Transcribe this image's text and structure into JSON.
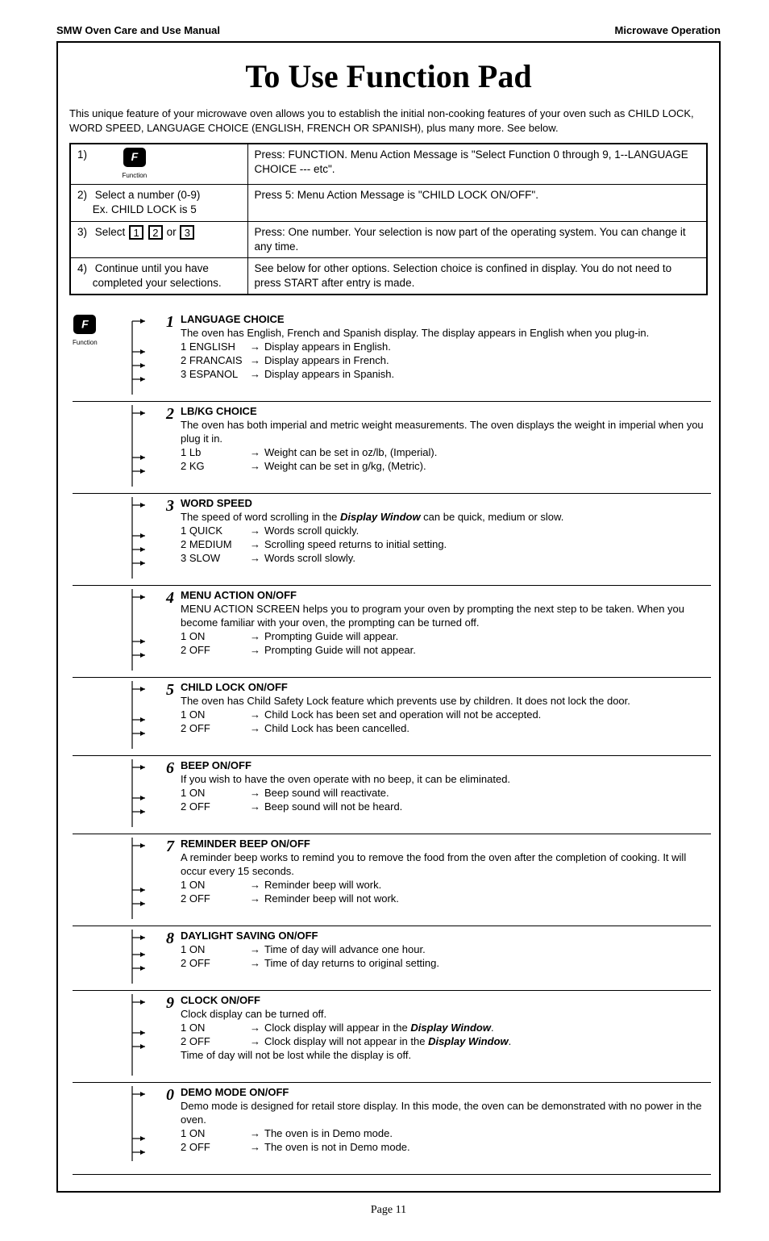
{
  "header": {
    "left": "SMW Oven Care and Use Manual",
    "right": "Microwave Operation"
  },
  "title": "To Use Function Pad",
  "intro": "This unique feature of your microwave oven allows you to establish the initial non-cooking features of your oven such as CHILD LOCK, WORD SPEED, LANGUAGE CHOICE (ENGLISH, FRENCH OR SPANISH), plus many more. See below.",
  "function_button_label": "Function",
  "steps": [
    {
      "num": "1)",
      "left_extra": "",
      "right": "Press: FUNCTION. Menu Action Message is \"Select Function 0 through 9, 1--LANGUAGE CHOICE --- etc\"."
    },
    {
      "num": "2)",
      "left_line1": "Select a number (0-9)",
      "left_line2": "Ex.   CHILD LOCK is 5",
      "right": "Press 5: Menu Action Message is \"CHILD LOCK ON/OFF\"."
    },
    {
      "num": "3)",
      "select_label": "Select",
      "or_label": "or",
      "right": "Press: One number. Your selection is now part of the operating system. You can change it any time."
    },
    {
      "num": "4)",
      "left_line1": "Continue until you have",
      "left_line2": "completed your selections.",
      "right": "See below for other options.  Selection choice is confined in display. You do not need to press START after entry is made."
    }
  ],
  "functions": [
    {
      "n": "1",
      "title": "LANGUAGE CHOICE",
      "desc": "The oven has English, French and Spanish display. The display appears in English when you plug-in.",
      "options": [
        {
          "k": "1 ENGLISH",
          "v": "Display appears in English."
        },
        {
          "k": "2 FRANCAIS",
          "v": "Display appears in French."
        },
        {
          "k": "3 ESPANOL",
          "v": "Display appears in Spanish."
        }
      ],
      "show_icon": true
    },
    {
      "n": "2",
      "title": "Lb/KG CHOICE",
      "desc": "The oven has both imperial and metric weight measurements. The oven displays the weight in imperial when you plug it in.",
      "options": [
        {
          "k": "1 Lb",
          "v": "Weight can be set in oz/lb, (Imperial)."
        },
        {
          "k": "2 KG",
          "v": "Weight can be set in g/kg, (Metric)."
        }
      ]
    },
    {
      "n": "3",
      "title": "WORD SPEED",
      "desc_pre": "The speed of word scrolling in the ",
      "desc_em": "Display Window",
      "desc_post": " can be quick, medium or slow.",
      "options": [
        {
          "k": "1 QUICK",
          "v": "Words scroll quickly."
        },
        {
          "k": "2 MEDIUM",
          "v": "Scrolling speed returns to initial setting."
        },
        {
          "k": "3 SLOW",
          "v": "Words scroll slowly."
        }
      ]
    },
    {
      "n": "4",
      "title": "MENU ACTION ON/OFF",
      "desc": "MENU ACTION SCREEN helps you to program your oven by prompting the next step to be taken. When you become familiar with your oven, the prompting can be turned off.",
      "options": [
        {
          "k": "1 ON",
          "v": "Prompting Guide will appear."
        },
        {
          "k": "2 OFF",
          "v": "Prompting Guide will not appear."
        }
      ]
    },
    {
      "n": "5",
      "title": "CHILD LOCK ON/OFF",
      "desc": "The oven has Child Safety Lock feature which prevents use by children.  It does not lock the door.",
      "options": [
        {
          "k": "1 ON",
          "v": "Child Lock has been set and operation will not be accepted."
        },
        {
          "k": "2 OFF",
          "v": "Child Lock has been cancelled."
        }
      ]
    },
    {
      "n": "6",
      "title": "BEEP ON/OFF",
      "desc": "If you wish to have the oven operate with no beep, it can be eliminated.",
      "options": [
        {
          "k": "1 ON",
          "v": "Beep sound will reactivate."
        },
        {
          "k": "2 OFF",
          "v": "Beep sound will not be heard."
        }
      ]
    },
    {
      "n": "7",
      "title": "REMINDER BEEP ON/OFF",
      "desc": "A reminder beep works to remind you to remove the food from the oven after the completion of cooking. It will occur every 15 seconds.",
      "options": [
        {
          "k": "1 ON",
          "v": "Reminder beep will work."
        },
        {
          "k": "2 OFF",
          "v": "Reminder beep will not work."
        }
      ]
    },
    {
      "n": "8",
      "title": "DAYLIGHT SAVING ON/OFF",
      "desc": "",
      "options": [
        {
          "k": "1 ON",
          "v": "Time of day will advance one hour."
        },
        {
          "k": "2 OFF",
          "v": "Time of day returns to original setting."
        }
      ]
    },
    {
      "n": "9",
      "title": "CLOCK ON/OFF",
      "desc": "Clock display can be turned off.",
      "options": [
        {
          "k": "1 ON",
          "v_pre": "Clock display will appear in the ",
          "v_em": "Display Window",
          "v_post": "."
        },
        {
          "k": "2 OFF",
          "v_pre": "Clock display will not appear in the ",
          "v_em": "Display Window",
          "v_post": "."
        }
      ],
      "tail": "Time of day will not be lost while the display is off."
    },
    {
      "n": "0",
      "title": "DEMO MODE ON/OFF",
      "desc": "Demo mode is designed for retail store display. In this mode, the oven can be demonstrated with no power in the oven.",
      "options": [
        {
          "k": "1 ON",
          "v": "The oven is in Demo mode."
        },
        {
          "k": "2 OFF",
          "v": "The oven is not in Demo mode."
        }
      ],
      "last": true
    }
  ],
  "page_label": "Page 11"
}
